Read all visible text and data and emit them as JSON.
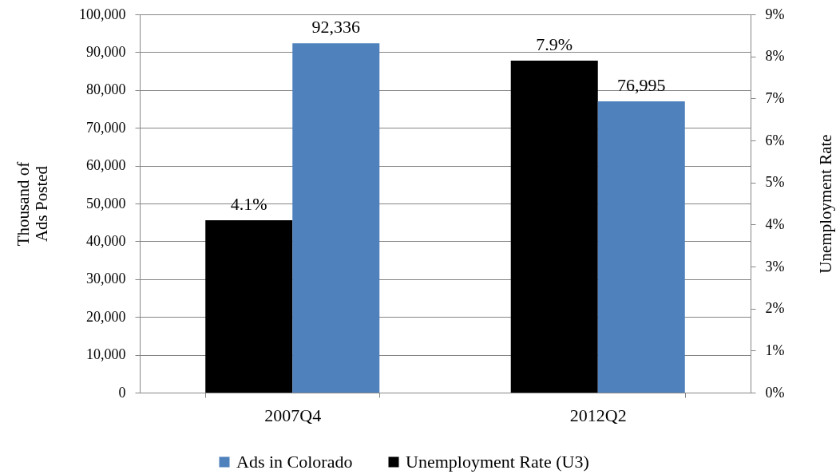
{
  "chart_data": {
    "type": "bar",
    "categories": [
      "2007Q4",
      "2012Q2"
    ],
    "series": [
      {
        "name": "Unemployment Rate (U3)",
        "color": "#000000",
        "axis": "y2",
        "values": [
          4.1,
          7.9
        ],
        "value_labels": [
          "4.1%",
          "7.9%"
        ]
      },
      {
        "name": "Ads in Colorado",
        "color": "#4f81bd",
        "axis": "y",
        "values": [
          92336,
          76995
        ],
        "value_labels": [
          "92,336",
          "76,995"
        ]
      }
    ],
    "ylabel": "Thousand of\nAds Posted",
    "y2label": "Unemployment Rate",
    "ylim": [
      0,
      100000
    ],
    "yticks": [
      {
        "value": 0,
        "label": "0"
      },
      {
        "value": 10000,
        "label": "10,000"
      },
      {
        "value": 20000,
        "label": "20,000"
      },
      {
        "value": 30000,
        "label": "30,000"
      },
      {
        "value": 40000,
        "label": "40,000"
      },
      {
        "value": 50000,
        "label": "50,000"
      },
      {
        "value": 60000,
        "label": "60,000"
      },
      {
        "value": 70000,
        "label": "70,000"
      },
      {
        "value": 80000,
        "label": "80,000"
      },
      {
        "value": 90000,
        "label": "90,000"
      },
      {
        "value": 100000,
        "label": "100,000"
      }
    ],
    "y2lim": [
      0,
      9
    ],
    "y2ticks": [
      {
        "value": 0,
        "label": "0%"
      },
      {
        "value": 1,
        "label": "1%"
      },
      {
        "value": 2,
        "label": "2%"
      },
      {
        "value": 3,
        "label": "3%"
      },
      {
        "value": 4,
        "label": "4%"
      },
      {
        "value": 5,
        "label": "5%"
      },
      {
        "value": 6,
        "label": "6%"
      },
      {
        "value": 7,
        "label": "7%"
      },
      {
        "value": 8,
        "label": "8%"
      },
      {
        "value": 9,
        "label": "9%"
      }
    ],
    "grid": "y",
    "legend": "bottom"
  }
}
